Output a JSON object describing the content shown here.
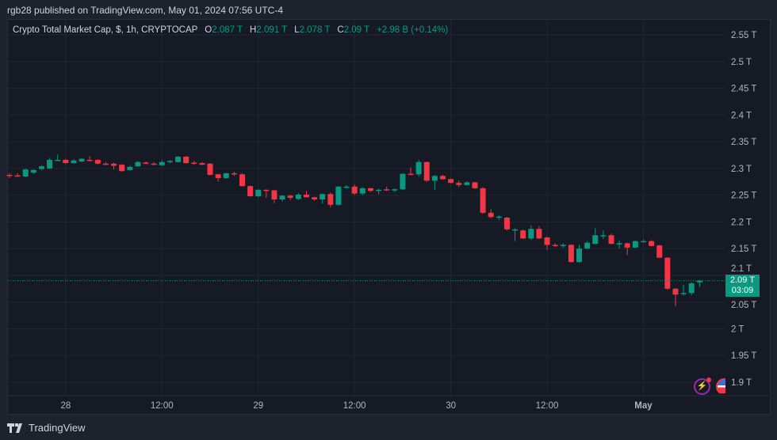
{
  "publisher_line": "rgb28 published on TradingView.com, May 01, 2024 07:56 UTC-4",
  "legend": {
    "symbol": "Crypto Total Market Cap, $, 1h, CRYPTOCAP",
    "o_label": "O",
    "o": "2.087 T",
    "h_label": "H",
    "h": "2.091 T",
    "l_label": "L",
    "l": "2.078 T",
    "c_label": "C",
    "c": "2.09 T",
    "change": "+2.98 B (+0.14%)"
  },
  "price_tag": {
    "value": "2.09 T",
    "countdown": "03:09"
  },
  "brand": "TradingView",
  "colors": {
    "up": "#089981",
    "down": "#f23645",
    "background": "#161a25",
    "grid": "#232733"
  },
  "icons": [
    "lightning-icon",
    "us-flag-icon",
    "tradingview-logo-icon"
  ],
  "chart_data": {
    "type": "candlestick",
    "interval": "1h",
    "unit": "T",
    "ylim": [
      1.88,
      2.57
    ],
    "grid": true,
    "y_ticks": [
      "2.55 T",
      "2.5 T",
      "2.45 T",
      "2.4 T",
      "2.35 T",
      "2.3 T",
      "2.25 T",
      "2.2 T",
      "2.15 T",
      "2.1 T",
      "2.05 T",
      "2 T",
      "1.95 T",
      "1.9 T"
    ],
    "y_tick_values": [
      2.55,
      2.5,
      2.45,
      2.4,
      2.35,
      2.3,
      2.25,
      2.2,
      2.15,
      2.1,
      2.05,
      2.0,
      1.95,
      1.9
    ],
    "x_ticks": [
      "28",
      "12:00",
      "29",
      "12:00",
      "30",
      "12:00",
      "May"
    ],
    "x_tick_candle_index": [
      7,
      19,
      31,
      43,
      55,
      67,
      79
    ],
    "last_price": 2.09,
    "ohlc": [
      [
        2.288,
        2.291,
        2.282,
        2.286
      ],
      [
        2.287,
        2.291,
        2.285,
        2.286
      ],
      [
        2.285,
        2.3,
        2.283,
        2.298
      ],
      [
        2.292,
        2.299,
        2.29,
        2.297
      ],
      [
        2.299,
        2.306,
        2.297,
        2.304
      ],
      [
        2.3,
        2.32,
        2.299,
        2.316
      ],
      [
        2.315,
        2.326,
        2.315,
        2.316
      ],
      [
        2.316,
        2.318,
        2.309,
        2.31
      ],
      [
        2.31,
        2.317,
        2.309,
        2.315
      ],
      [
        2.313,
        2.319,
        2.312,
        2.318
      ],
      [
        2.316,
        2.323,
        2.315,
        2.315
      ],
      [
        2.316,
        2.317,
        2.308,
        2.309
      ],
      [
        2.309,
        2.312,
        2.306,
        2.308
      ],
      [
        2.309,
        2.311,
        2.298,
        2.305
      ],
      [
        2.307,
        2.308,
        2.294,
        2.295
      ],
      [
        2.297,
        2.305,
        2.296,
        2.303
      ],
      [
        2.304,
        2.314,
        2.303,
        2.312
      ],
      [
        2.311,
        2.313,
        2.308,
        2.31
      ],
      [
        2.309,
        2.312,
        2.306,
        2.308
      ],
      [
        2.306,
        2.315,
        2.305,
        2.312
      ],
      [
        2.312,
        2.316,
        2.31,
        2.314
      ],
      [
        2.312,
        2.323,
        2.311,
        2.322
      ],
      [
        2.322,
        2.323,
        2.309,
        2.31
      ],
      [
        2.311,
        2.314,
        2.307,
        2.31
      ],
      [
        2.31,
        2.312,
        2.306,
        2.307
      ],
      [
        2.309,
        2.31,
        2.287,
        2.288
      ],
      [
        2.289,
        2.29,
        2.275,
        2.282
      ],
      [
        2.282,
        2.292,
        2.281,
        2.291
      ],
      [
        2.291,
        2.294,
        2.286,
        2.29
      ],
      [
        2.289,
        2.291,
        2.266,
        2.267
      ],
      [
        2.267,
        2.268,
        2.247,
        2.248
      ],
      [
        2.248,
        2.261,
        2.246,
        2.26
      ],
      [
        2.26,
        2.261,
        2.245,
        2.259
      ],
      [
        2.259,
        2.26,
        2.235,
        2.242
      ],
      [
        2.242,
        2.25,
        2.238,
        2.249
      ],
      [
        2.249,
        2.251,
        2.241,
        2.245
      ],
      [
        2.243,
        2.254,
        2.241,
        2.251
      ],
      [
        2.251,
        2.258,
        2.246,
        2.246
      ],
      [
        2.246,
        2.247,
        2.24,
        2.242
      ],
      [
        2.242,
        2.253,
        2.234,
        2.252
      ],
      [
        2.252,
        2.255,
        2.227,
        2.232
      ],
      [
        2.232,
        2.267,
        2.23,
        2.266
      ],
      [
        2.264,
        2.269,
        2.262,
        2.266
      ],
      [
        2.266,
        2.27,
        2.251,
        2.253
      ],
      [
        2.253,
        2.265,
        2.25,
        2.263
      ],
      [
        2.263,
        2.264,
        2.256,
        2.258
      ],
      [
        2.258,
        2.262,
        2.252,
        2.26
      ],
      [
        2.261,
        2.266,
        2.258,
        2.26
      ],
      [
        2.26,
        2.263,
        2.256,
        2.261
      ],
      [
        2.261,
        2.291,
        2.26,
        2.29
      ],
      [
        2.29,
        2.302,
        2.289,
        2.289
      ],
      [
        2.289,
        2.316,
        2.285,
        2.312
      ],
      [
        2.312,
        2.313,
        2.275,
        2.277
      ],
      [
        2.277,
        2.288,
        2.26,
        2.286
      ],
      [
        2.286,
        2.288,
        2.279,
        2.28
      ],
      [
        2.28,
        2.281,
        2.272,
        2.273
      ],
      [
        2.273,
        2.277,
        2.265,
        2.269
      ],
      [
        2.269,
        2.276,
        2.268,
        2.274
      ],
      [
        2.274,
        2.275,
        2.262,
        2.263
      ],
      [
        2.263,
        2.265,
        2.215,
        2.217
      ],
      [
        2.217,
        2.224,
        2.207,
        2.209
      ],
      [
        2.209,
        2.213,
        2.204,
        2.21
      ],
      [
        2.208,
        2.209,
        2.184,
        2.186
      ],
      [
        2.186,
        2.188,
        2.164,
        2.186
      ],
      [
        2.184,
        2.186,
        2.168,
        2.169
      ],
      [
        2.169,
        2.193,
        2.166,
        2.187
      ],
      [
        2.187,
        2.192,
        2.168,
        2.169
      ],
      [
        2.171,
        2.172,
        2.148,
        2.157
      ],
      [
        2.157,
        2.16,
        2.153,
        2.156
      ],
      [
        2.156,
        2.16,
        2.151,
        2.157
      ],
      [
        2.157,
        2.158,
        2.124,
        2.125
      ],
      [
        2.125,
        2.157,
        2.124,
        2.15
      ],
      [
        2.15,
        2.164,
        2.149,
        2.161
      ],
      [
        2.159,
        2.188,
        2.158,
        2.175
      ],
      [
        2.174,
        2.184,
        2.168,
        2.175
      ],
      [
        2.175,
        2.178,
        2.158,
        2.159
      ],
      [
        2.159,
        2.166,
        2.15,
        2.16
      ],
      [
        2.16,
        2.161,
        2.138,
        2.152
      ],
      [
        2.152,
        2.165,
        2.151,
        2.164
      ],
      [
        2.163,
        2.167,
        2.162,
        2.164
      ],
      [
        2.164,
        2.166,
        2.154,
        2.155
      ],
      [
        2.156,
        2.157,
        2.133,
        2.133
      ],
      [
        2.133,
        2.134,
        2.073,
        2.075
      ],
      [
        2.075,
        2.076,
        2.042,
        2.064
      ],
      [
        2.066,
        2.082,
        2.062,
        2.067
      ],
      [
        2.067,
        2.087,
        2.063,
        2.085
      ],
      [
        2.087,
        2.091,
        2.078,
        2.09
      ]
    ]
  }
}
